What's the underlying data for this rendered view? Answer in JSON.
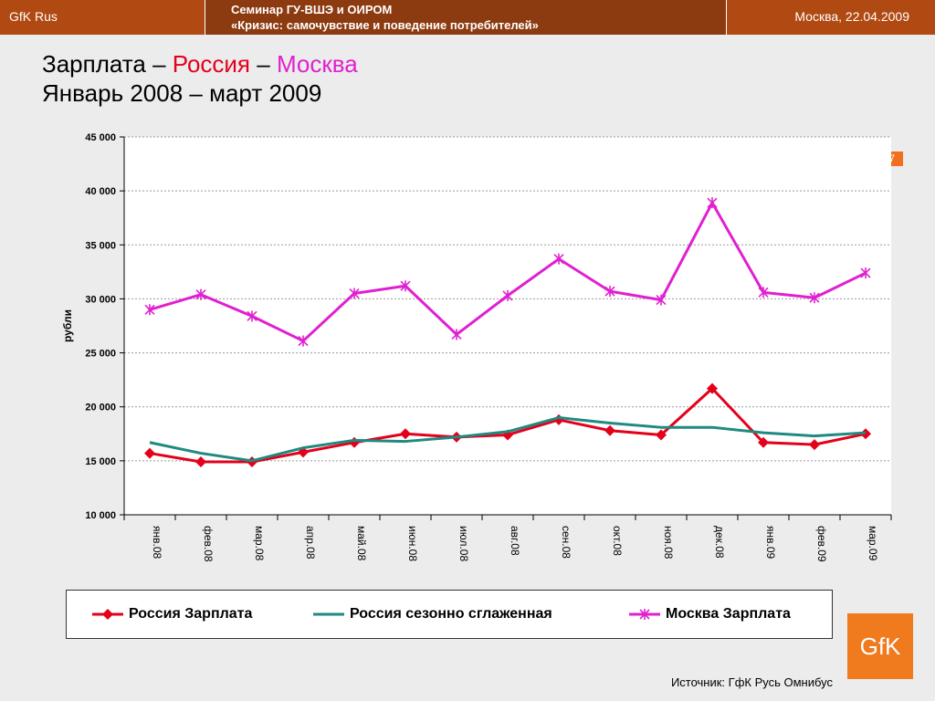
{
  "header": {
    "brand": "GfK Rus",
    "seminar_line1": "Семинар ГУ-ВШЭ и ОИРОМ",
    "seminar_line2": "«Кризис: самочувствие и поведение потребителей»",
    "place_date": "Москва, 22.04.2009"
  },
  "title": {
    "part1": "Зарплата – ",
    "part2": "Россия",
    "part3": " – ",
    "part4": "Москва",
    "line2": "Январь 2008 – март 2009"
  },
  "page_number": "7",
  "logo_text": "GfK",
  "source": "Источник: ГфК Русь Омнибус",
  "colors": {
    "russia": "#e4001b",
    "russia_smoothed": "#1f8a80",
    "moscow": "#e020d0",
    "accent": "#b04a12"
  },
  "chart_data": {
    "type": "line",
    "ylabel": "рубли",
    "ylim": [
      10000,
      45000
    ],
    "yticks": [
      10000,
      15000,
      20000,
      25000,
      30000,
      35000,
      40000,
      45000
    ],
    "ytick_labels": [
      "10 000",
      "15 000",
      "20 000",
      "25 000",
      "30 000",
      "35 000",
      "40 000",
      "45 000"
    ],
    "grid": true,
    "legend_position": "bottom",
    "categories": [
      "янв.08",
      "фев.08",
      "мар.08",
      "апр.08",
      "май.08",
      "июн.08",
      "июл.08",
      "авг.08",
      "сен.08",
      "окт.08",
      "ноя.08",
      "дек.08",
      "янв.09",
      "фев.09",
      "мар.09"
    ],
    "series": [
      {
        "name": "Россия Зарплата",
        "marker": "diamond",
        "color": "#e4001b",
        "values": [
          15700,
          14900,
          14900,
          15800,
          16700,
          17500,
          17200,
          17400,
          18800,
          17800,
          17400,
          21700,
          16700,
          16500,
          17500
        ]
      },
      {
        "name": "Россия сезонно сглаженная",
        "marker": "none",
        "color": "#1f8a80",
        "values": [
          16700,
          15700,
          15000,
          16200,
          16900,
          16800,
          17200,
          17700,
          19000,
          18500,
          18100,
          18100,
          17600,
          17300,
          17600
        ]
      },
      {
        "name": "Москва Зарплата",
        "marker": "star",
        "color": "#e020d0",
        "values": [
          29000,
          30400,
          28400,
          26100,
          30500,
          31200,
          26700,
          30300,
          33700,
          30700,
          29900,
          38900,
          30600,
          30100,
          32400
        ]
      }
    ]
  }
}
